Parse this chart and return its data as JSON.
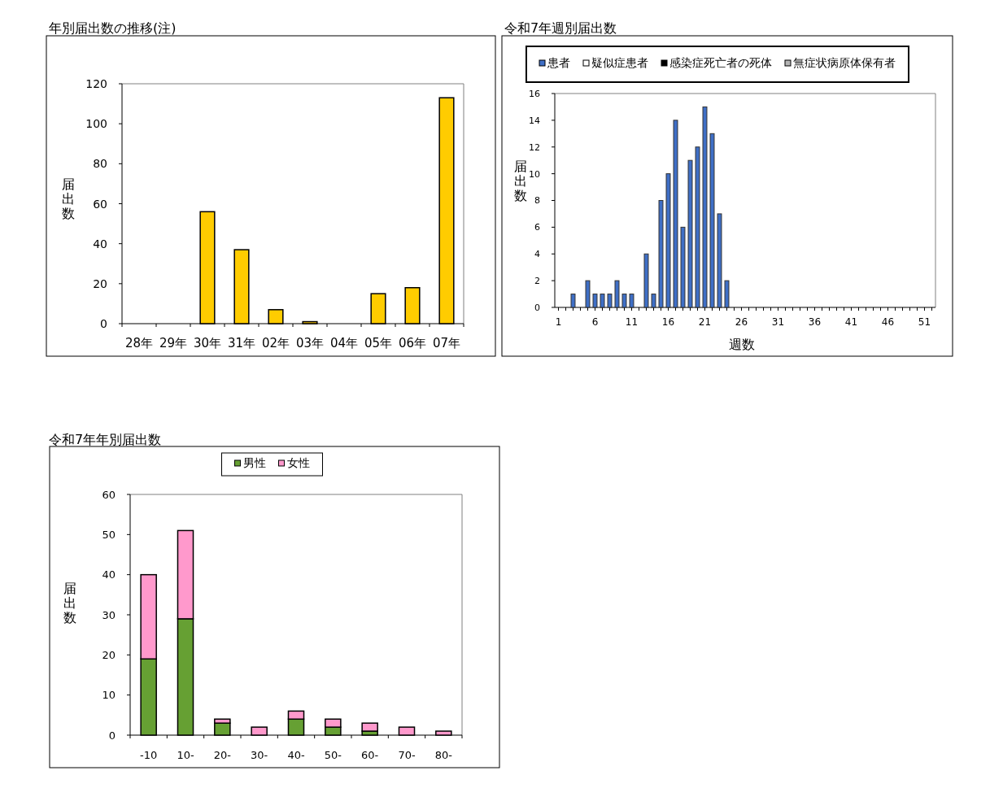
{
  "chart_data": [
    {
      "type": "bar",
      "title": "年別届出数の推移(注)",
      "ylabel": "届出数",
      "categories": [
        "28年",
        "29年",
        "30年",
        "31年",
        "02年",
        "03年",
        "04年",
        "05年",
        "06年",
        "07年"
      ],
      "values": [
        0,
        0,
        56,
        37,
        7,
        1,
        0,
        15,
        18,
        113
      ],
      "color": "#ffcc00",
      "ylim": [
        0,
        120
      ],
      "yticks": [
        0,
        20,
        40,
        60,
        80,
        100,
        120
      ]
    },
    {
      "type": "bar",
      "title": "令和7年週別届出数",
      "xlabel": "週数",
      "ylabel": "届出数",
      "stacked": true,
      "legend": "top",
      "ylim": [
        0,
        16
      ],
      "yticks": [
        0,
        2,
        4,
        6,
        8,
        10,
        12,
        14,
        16
      ],
      "categories": [
        "1",
        null,
        null,
        null,
        null,
        "6",
        null,
        null,
        null,
        null,
        "11",
        null,
        null,
        null,
        null,
        "16",
        null,
        null,
        null,
        null,
        "21",
        null,
        null,
        null,
        null,
        "26",
        null,
        null,
        null,
        null,
        "31",
        null,
        null,
        null,
        null,
        "36",
        null,
        null,
        null,
        null,
        "41",
        null,
        null,
        null,
        null,
        "46",
        null,
        null,
        null,
        null,
        "51",
        null
      ],
      "series": [
        {
          "name": "患者",
          "color": "#3f6fc6",
          "values": [
            0,
            0,
            1,
            0,
            2,
            1,
            1,
            1,
            2,
            1,
            1,
            0,
            4,
            1,
            8,
            10,
            14,
            6,
            11,
            12,
            15,
            13,
            7,
            2,
            0,
            0,
            0,
            0,
            0,
            0,
            0,
            0,
            0,
            0,
            0,
            0,
            0,
            0,
            0,
            0,
            0,
            0,
            0,
            0,
            0,
            0,
            0,
            0,
            0,
            0,
            0,
            0
          ]
        },
        {
          "name": "疑似症患者",
          "color": "#ffffff",
          "values": [
            0,
            0,
            0,
            0,
            0,
            0,
            0,
            0,
            0,
            0,
            0,
            0,
            0,
            0,
            0,
            0,
            0,
            0,
            0,
            0,
            0,
            0,
            0,
            0,
            0,
            0,
            0,
            0,
            0,
            0,
            0,
            0,
            0,
            0,
            0,
            0,
            0,
            0,
            0,
            0,
            0,
            0,
            0,
            0,
            0,
            0,
            0,
            0,
            0,
            0,
            0,
            0
          ]
        },
        {
          "name": "感染症死亡者の死体",
          "color": "#000000",
          "values": [
            0,
            0,
            0,
            0,
            0,
            0,
            0,
            0,
            0,
            0,
            0,
            0,
            0,
            0,
            0,
            0,
            0,
            0,
            0,
            0,
            0,
            0,
            0,
            0,
            0,
            0,
            0,
            0,
            0,
            0,
            0,
            0,
            0,
            0,
            0,
            0,
            0,
            0,
            0,
            0,
            0,
            0,
            0,
            0,
            0,
            0,
            0,
            0,
            0,
            0,
            0,
            0
          ]
        },
        {
          "name": "無症状病原体保有者",
          "color": "#b4b4b4",
          "values": [
            0,
            0,
            0,
            0,
            0,
            0,
            0,
            0,
            0,
            0,
            0,
            0,
            0,
            0,
            0,
            0,
            0,
            0,
            0,
            0,
            0,
            0,
            0,
            0,
            0,
            0,
            0,
            0,
            0,
            0,
            0,
            0,
            0,
            0,
            0,
            0,
            0,
            0,
            0,
            0,
            0,
            0,
            0,
            0,
            0,
            0,
            0,
            0,
            0,
            0,
            0,
            0
          ]
        }
      ]
    },
    {
      "type": "bar",
      "title": "令和7年年別届出数",
      "ylabel": "届出数",
      "stacked": true,
      "legend": "top",
      "ylim": [
        0,
        60
      ],
      "yticks": [
        0,
        10,
        20,
        30,
        40,
        50,
        60
      ],
      "categories": [
        "-10",
        "10-",
        "20-",
        "30-",
        "40-",
        "50-",
        "60-",
        "70-",
        "80-"
      ],
      "series": [
        {
          "name": "男性",
          "color": "#66a033",
          "values": [
            19,
            29,
            3,
            0,
            4,
            2,
            1,
            0,
            0
          ]
        },
        {
          "name": "女性",
          "color": "#ff99cc",
          "values": [
            21,
            22,
            1,
            2,
            2,
            2,
            2,
            2,
            1
          ]
        }
      ]
    }
  ]
}
